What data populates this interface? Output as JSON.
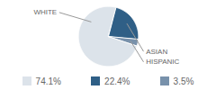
{
  "chart_data": {
    "type": "pie",
    "categories": [
      "WHITE",
      "ASIAN",
      "HISPANIC"
    ],
    "values": [
      74.1,
      22.4,
      3.5
    ],
    "value_labels": [
      "74.1%",
      "22.4%",
      "3.5%"
    ],
    "colors": [
      "#dce3ea",
      "#2f5f86",
      "#7891ab"
    ],
    "legend": "bottom"
  }
}
